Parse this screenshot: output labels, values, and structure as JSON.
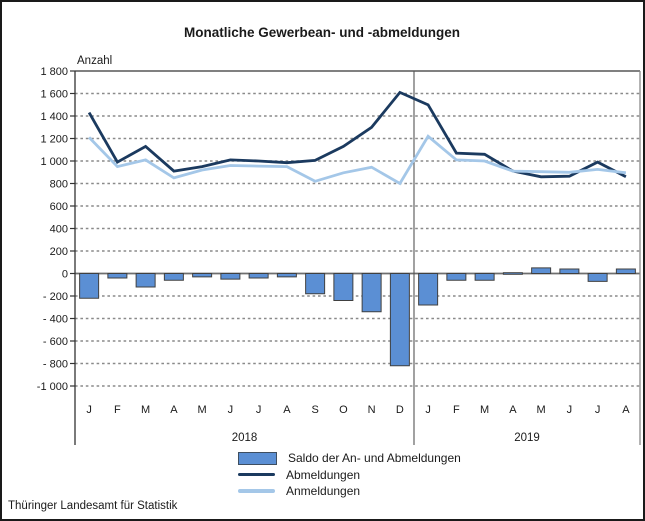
{
  "page": {
    "footer_source": "Thüringer Landesamt für Statistik"
  },
  "chart_data": {
    "type": "combo-bar-line",
    "title": "Monatliche Gewerbean- und -abmeldungen",
    "ylabel": "Anzahl",
    "ylim": [
      -1000,
      1800
    ],
    "ytick_step": 200,
    "ytick_labels": [
      "1 800",
      "1 600",
      "1 400",
      "1 200",
      "1 000",
      "800",
      "600",
      "400",
      "200",
      "0",
      "- 200",
      "- 400",
      "- 600",
      "- 800",
      "-1 000"
    ],
    "grid": "horizontal dotted gridlines, solid line at top (1800) and at zero",
    "legend_position": "bottom-center",
    "categories": [
      "J",
      "F",
      "M",
      "A",
      "M",
      "J",
      "J",
      "A",
      "S",
      "O",
      "N",
      "D",
      "J",
      "F",
      "M",
      "A",
      "M",
      "J",
      "J",
      "A"
    ],
    "year_groups": [
      {
        "label": "2018",
        "start": 0,
        "count": 12
      },
      {
        "label": "2019",
        "start": 12,
        "count": 8
      }
    ],
    "series": [
      {
        "name": "Saldo der An- und Abmeldungen",
        "type": "bar",
        "color": "#5b8fd4",
        "border_color": "#404040",
        "values": [
          -220,
          -40,
          -120,
          -60,
          -30,
          -50,
          -40,
          -30,
          -180,
          -240,
          -340,
          -820,
          -280,
          -60,
          -60,
          0,
          50,
          40,
          -70,
          40
        ]
      },
      {
        "name": "Abmeldungen",
        "type": "line",
        "color": "#1b3a5f",
        "values": [
          1430,
          990,
          1130,
          910,
          950,
          1010,
          1000,
          985,
          1005,
          1130,
          1300,
          1610,
          1500,
          1070,
          1060,
          910,
          860,
          865,
          990,
          860
        ]
      },
      {
        "name": "Anmeldungen",
        "type": "line",
        "color": "#a4c7e8",
        "values": [
          1210,
          950,
          1010,
          850,
          920,
          960,
          955,
          950,
          820,
          895,
          945,
          800,
          1220,
          1010,
          1000,
          910,
          905,
          900,
          925,
          895
        ]
      }
    ]
  }
}
